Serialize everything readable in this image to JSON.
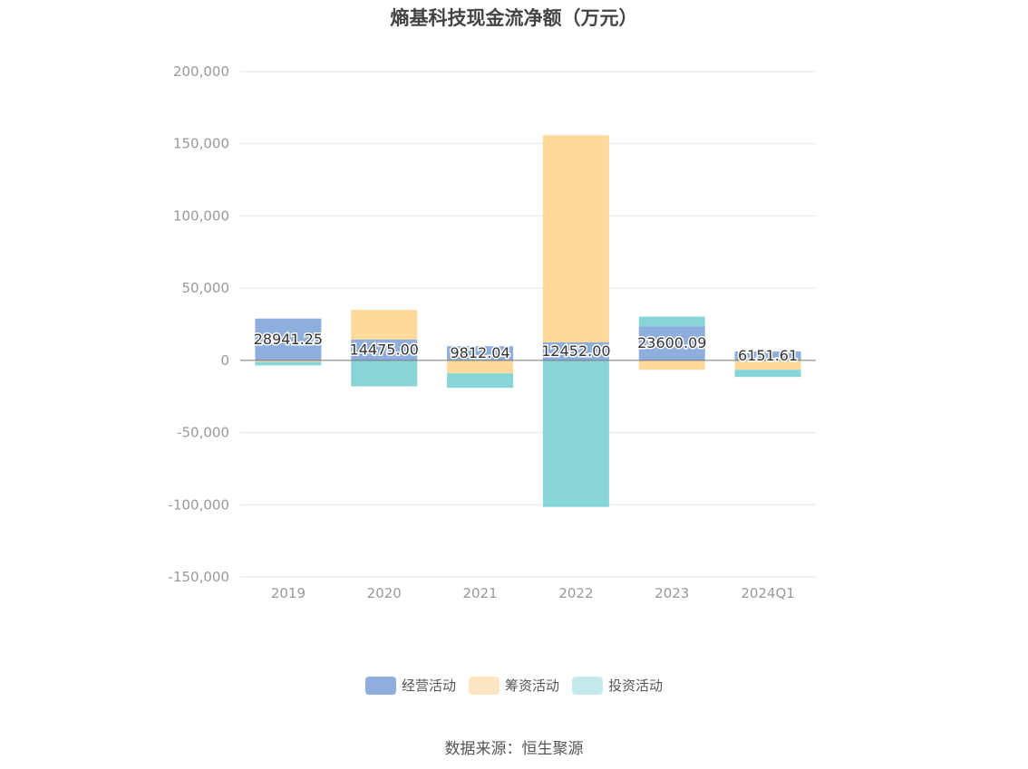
{
  "chart_data": {
    "type": "bar",
    "stacked": true,
    "title": "熵基科技现金流净额（万元）",
    "categories": [
      "2019",
      "2020",
      "2021",
      "2022",
      "2023",
      "2024Q1"
    ],
    "yticks": [
      "200,000",
      "150,000",
      "100,000",
      "50,000",
      "0",
      "-50,000",
      "-100,000",
      "-150,000"
    ],
    "ylim": [
      -150000,
      200000
    ],
    "grid": true,
    "legend_position": "bottom",
    "series": [
      {
        "name": "经营活动",
        "color": "#8eaedd",
        "values": [
          28941.25,
          14475.0,
          9812.04,
          12452.0,
          23600.09,
          6151.61
        ]
      },
      {
        "name": "筹资活动",
        "color": "#ffd89c",
        "values": [
          -1000,
          20500,
          -9000,
          143500,
          -6500,
          -6500
        ]
      },
      {
        "name": "投资活动",
        "color": "#88d5d8",
        "values": [
          -2500,
          -18000,
          -10000,
          -101500,
          6700,
          -5000
        ]
      }
    ],
    "data_labels": [
      "28941.25",
      "14475.00",
      "9812.04",
      "12452.00",
      "23600.09",
      "6151.61"
    ],
    "legend_colors": [
      "#8eaedd",
      "#fde5c3",
      "#c2e9eb"
    ]
  },
  "source": "数据来源：恒生聚源"
}
